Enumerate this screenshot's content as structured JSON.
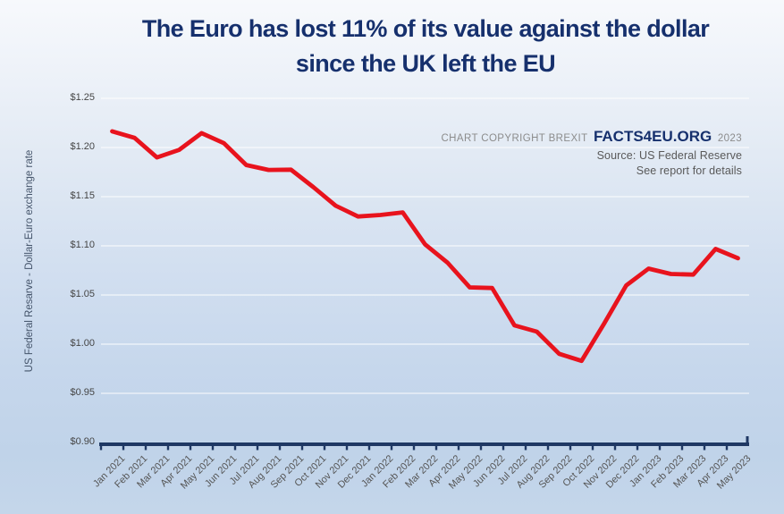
{
  "title": {
    "line1": "The Euro has lost 11% of its value against the dollar",
    "line2": "since the UK left the EU"
  },
  "watermark": {
    "prefix": "CHART COPYRIGHT BREXIT",
    "brand": "FACTS4EU.ORG",
    "year": "2023",
    "source": "Source: US Federal Reserve",
    "note": "See report for details"
  },
  "colors": {
    "title_navy": "#16306d",
    "line_red": "#e8131d",
    "axis_navy": "#1f3864",
    "gridline": "rgba(255,255,255,0.75)",
    "tick_label_gray": "#555555",
    "ytitle_slate": "#44546a",
    "watermark_gray": "#8c8c8c",
    "source_gray": "#595959",
    "bg_top": "#f7f9fc",
    "bg_bottom": "#c4d6ea"
  },
  "chart_data": {
    "type": "line",
    "title": "The Euro has lost 11% of its value against the dollar since the UK left the EU",
    "xlabel": "",
    "ylabel": "US Federal Resarve - Dollar-Euro exchange rate",
    "ylim": [
      0.9,
      1.25
    ],
    "ytick_step": 0.05,
    "ytick_labels": [
      "$1.25",
      "$1.20",
      "$1.15",
      "$1.10",
      "$1.05",
      "$1.00",
      "$0.95",
      "$0.90"
    ],
    "grid": true,
    "legend": false,
    "categories": [
      "Jan 2021",
      "Feb 2021",
      "Mar 2021",
      "Apr 2021",
      "May 2021",
      "Jun 2021",
      "Jul 2021",
      "Aug 2021",
      "Sep 2021",
      "Oct 2021",
      "Nov 2021",
      "Dec 2021",
      "Jan 2022",
      "Feb 2022",
      "Mar 2022",
      "Apr 2022",
      "May 2022",
      "Jun 2022",
      "Jul 2022",
      "Aug 2022",
      "Sep 2022",
      "Oct 2022",
      "Nov 2022",
      "Dec 2022",
      "Jan 2023",
      "Feb 2023",
      "Mar 2023",
      "Apr 2023",
      "May 2023"
    ],
    "series": [
      {
        "name": "Dollar-Euro exchange rate",
        "color": "#e8131d",
        "values": [
          1.2165,
          1.2098,
          1.1899,
          1.1976,
          1.2146,
          1.2044,
          1.1822,
          1.1772,
          1.1775,
          1.1597,
          1.1408,
          1.1298,
          1.1314,
          1.134,
          1.1015,
          1.083,
          1.0577,
          1.0571,
          1.0191,
          1.0127,
          0.9902,
          0.983,
          1.0205,
          1.0597,
          1.0768,
          1.0714,
          1.0707,
          1.0968,
          1.0874
        ]
      }
    ]
  }
}
